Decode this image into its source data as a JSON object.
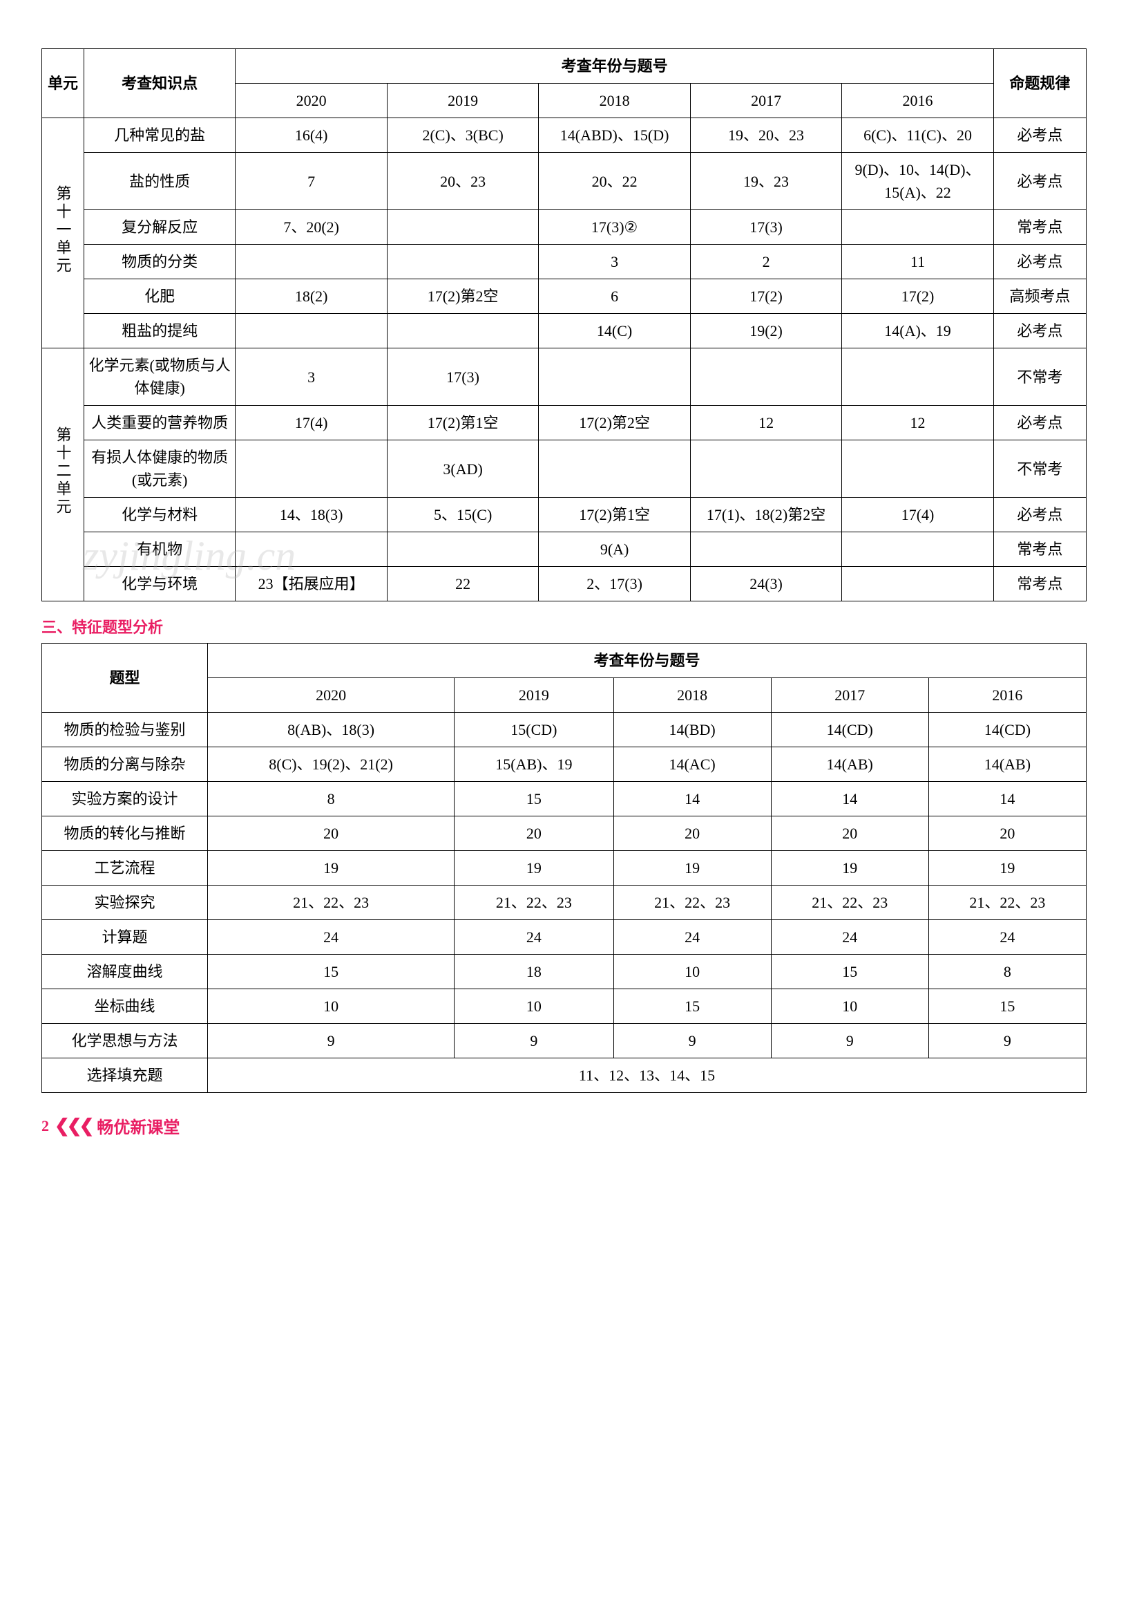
{
  "table1": {
    "headers": {
      "unit": "单元",
      "topic": "考查知识点",
      "year_group": "考查年份与题号",
      "rule": "命题规律",
      "years": [
        "2020",
        "2019",
        "2018",
        "2017",
        "2016"
      ]
    },
    "unit11_label": "第十一单元",
    "unit12_label": "第十二单元",
    "rows": [
      {
        "unit": 11,
        "topic": "几种常见的盐",
        "y2020": "16(4)",
        "y2019": "2(C)、3(BC)",
        "y2018": "14(ABD)、15(D)",
        "y2017": "19、20、23",
        "y2016": "6(C)、11(C)、20",
        "rule": "必考点"
      },
      {
        "unit": 11,
        "topic": "盐的性质",
        "y2020": "7",
        "y2019": "20、23",
        "y2018": "20、22",
        "y2017": "19、23",
        "y2016": "9(D)、10、14(D)、15(A)、22",
        "rule": "必考点"
      },
      {
        "unit": 11,
        "topic": "复分解反应",
        "y2020": "7、20(2)",
        "y2019": "",
        "y2018": "17(3)②",
        "y2017": "17(3)",
        "y2016": "",
        "rule": "常考点"
      },
      {
        "unit": 11,
        "topic": "物质的分类",
        "y2020": "",
        "y2019": "",
        "y2018": "3",
        "y2017": "2",
        "y2016": "11",
        "rule": "必考点"
      },
      {
        "unit": 11,
        "topic": "化肥",
        "y2020": "18(2)",
        "y2019": "17(2)第2空",
        "y2018": "6",
        "y2017": "17(2)",
        "y2016": "17(2)",
        "rule": "高频考点"
      },
      {
        "unit": 11,
        "topic": "粗盐的提纯",
        "y2020": "",
        "y2019": "",
        "y2018": "14(C)",
        "y2017": "19(2)",
        "y2016": "14(A)、19",
        "rule": "必考点"
      },
      {
        "unit": 12,
        "topic": "化学元素(或物质与人体健康)",
        "y2020": "3",
        "y2019": "17(3)",
        "y2018": "",
        "y2017": "",
        "y2016": "",
        "rule": "不常考"
      },
      {
        "unit": 12,
        "topic": "人类重要的营养物质",
        "y2020": "17(4)",
        "y2019": "17(2)第1空",
        "y2018": "17(2)第2空",
        "y2017": "12",
        "y2016": "12",
        "rule": "必考点"
      },
      {
        "unit": 12,
        "topic": "有损人体健康的物质(或元素)",
        "y2020": "",
        "y2019": "3(AD)",
        "y2018": "",
        "y2017": "",
        "y2016": "",
        "rule": "不常考"
      },
      {
        "unit": 12,
        "topic": "化学与材料",
        "y2020": "14、18(3)",
        "y2019": "5、15(C)",
        "y2018": "17(2)第1空",
        "y2017": "17(1)、18(2)第2空",
        "y2016": "17(4)",
        "rule": "必考点"
      },
      {
        "unit": 12,
        "topic": "有机物",
        "y2020": "",
        "y2019": "",
        "y2018": "9(A)",
        "y2017": "",
        "y2016": "",
        "rule": "常考点"
      },
      {
        "unit": 12,
        "topic": "化学与环境",
        "y2020": "23【拓展应用】",
        "y2019": "22",
        "y2018": "2、17(3)",
        "y2017": "24(3)",
        "y2016": "",
        "rule": "常考点"
      }
    ]
  },
  "section_title": "三、特征题型分析",
  "table2": {
    "headers": {
      "type": "题型",
      "year_group": "考查年份与题号",
      "years": [
        "2020",
        "2019",
        "2018",
        "2017",
        "2016"
      ]
    },
    "rows": [
      {
        "type": "物质的检验与鉴别",
        "y2020": "8(AB)、18(3)",
        "y2019": "15(CD)",
        "y2018": "14(BD)",
        "y2017": "14(CD)",
        "y2016": "14(CD)"
      },
      {
        "type": "物质的分离与除杂",
        "y2020": "8(C)、19(2)、21(2)",
        "y2019": "15(AB)、19",
        "y2018": "14(AC)",
        "y2017": "14(AB)",
        "y2016": "14(AB)"
      },
      {
        "type": "实验方案的设计",
        "y2020": "8",
        "y2019": "15",
        "y2018": "14",
        "y2017": "14",
        "y2016": "14"
      },
      {
        "type": "物质的转化与推断",
        "y2020": "20",
        "y2019": "20",
        "y2018": "20",
        "y2017": "20",
        "y2016": "20"
      },
      {
        "type": "工艺流程",
        "y2020": "19",
        "y2019": "19",
        "y2018": "19",
        "y2017": "19",
        "y2016": "19"
      },
      {
        "type": "实验探究",
        "y2020": "21、22、23",
        "y2019": "21、22、23",
        "y2018": "21、22、23",
        "y2017": "21、22、23",
        "y2016": "21、22、23"
      },
      {
        "type": "计算题",
        "y2020": "24",
        "y2019": "24",
        "y2018": "24",
        "y2017": "24",
        "y2016": "24"
      },
      {
        "type": "溶解度曲线",
        "y2020": "15",
        "y2019": "18",
        "y2018": "10",
        "y2017": "15",
        "y2016": "8"
      },
      {
        "type": "坐标曲线",
        "y2020": "10",
        "y2019": "10",
        "y2018": "15",
        "y2017": "10",
        "y2016": "15"
      },
      {
        "type": "化学思想与方法",
        "y2020": "9",
        "y2019": "9",
        "y2018": "9",
        "y2017": "9",
        "y2016": "9"
      }
    ],
    "last_row": {
      "type": "选择填充题",
      "merged": "11、12、13、14、15"
    }
  },
  "footer": {
    "page": "2",
    "arrows": "❮❮❮",
    "brand": "畅优新课堂"
  },
  "watermarks": {
    "wm1": "zyjingling.cn",
    "wm2": "zyjingling",
    "wm3": ".cn"
  }
}
